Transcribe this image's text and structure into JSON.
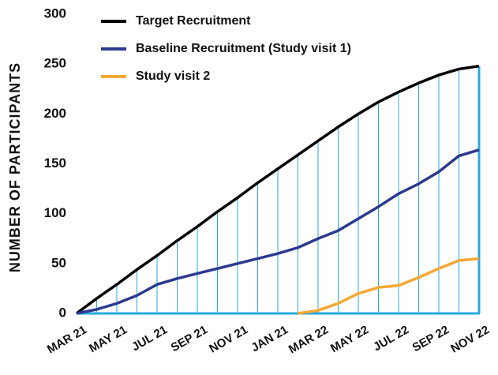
{
  "chart_data": {
    "type": "line",
    "y_label": "NUMBER OF PARTICIPANTS",
    "categories": [
      "MAR 21",
      null,
      "MAY 21",
      null,
      "JUL 21",
      null,
      "SEP 21",
      null,
      "NOV 21",
      null,
      "JAN 21",
      null,
      "MAR 22",
      null,
      "MAY 22",
      null,
      "JUL 22",
      null,
      "SEP 22",
      null,
      "NOV 22"
    ],
    "series": [
      {
        "name": "Target Recruitment",
        "color": "#000000",
        "values": [
          0,
          15,
          29,
          44,
          58,
          73,
          87,
          102,
          116,
          131,
          145,
          159,
          173,
          187,
          200,
          212,
          222,
          231,
          239,
          245,
          248
        ]
      },
      {
        "name": "Baseline Recruitment (Study visit 1)",
        "color": "#2b3990",
        "values": [
          0,
          4,
          10,
          18,
          29,
          35,
          40,
          45,
          50,
          55,
          60,
          66,
          75,
          83,
          95,
          107,
          120,
          130,
          142,
          158,
          164
        ]
      },
      {
        "name": "Study visit 2",
        "color": "#f7a734",
        "values": [
          null,
          null,
          null,
          null,
          null,
          null,
          null,
          null,
          null,
          null,
          null,
          0,
          3,
          10,
          20,
          26,
          28,
          36,
          45,
          53,
          55
        ]
      }
    ],
    "ylim": [
      0,
      300
    ],
    "yticks": [
      0,
      50,
      100,
      150,
      200,
      250,
      300
    ],
    "drop_line_color": "#29a8e0",
    "grid": false
  }
}
